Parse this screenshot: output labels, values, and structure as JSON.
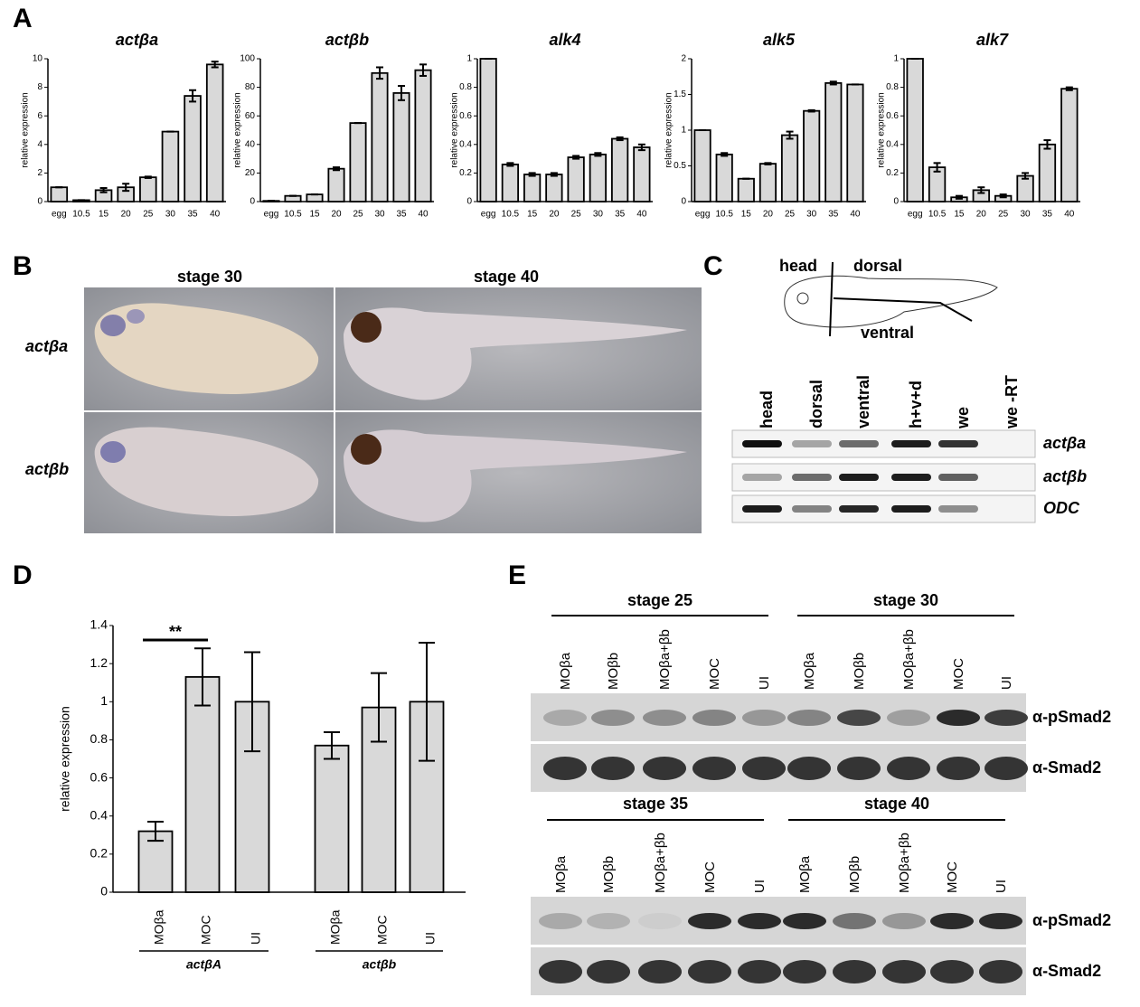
{
  "panel_labels": [
    "A",
    "B",
    "C",
    "D",
    "E"
  ],
  "chart_data": [
    {
      "type": "bar",
      "title": "actβa",
      "y_label": "relative expression",
      "categories": [
        "egg",
        "10.5",
        "15",
        "20",
        "25",
        "30",
        "35",
        "40"
      ],
      "values": [
        1.0,
        0.1,
        0.8,
        1.0,
        1.7,
        4.9,
        7.4,
        9.6
      ],
      "errors": [
        0,
        0,
        0.15,
        0.25,
        0.05,
        0,
        0.4,
        0.2
      ],
      "color": "#d9d9d9",
      "ylim": [
        0,
        10
      ],
      "yticks": [
        0,
        2,
        4,
        6,
        8,
        10
      ]
    },
    {
      "type": "bar",
      "title": "actβb",
      "y_label": "relative expression",
      "categories": [
        "egg",
        "10.5",
        "15",
        "20",
        "25",
        "30",
        "35",
        "40"
      ],
      "values": [
        0.5,
        4,
        5,
        23,
        55,
        90,
        76,
        92
      ],
      "errors": [
        0,
        0,
        0,
        1,
        0,
        4,
        5,
        4
      ],
      "color": "#d9d9d9",
      "ylim": [
        0,
        100
      ],
      "yticks": [
        0,
        20,
        40,
        60,
        80,
        100
      ]
    },
    {
      "type": "bar",
      "title": "alk4",
      "y_label": "relative expression",
      "categories": [
        "egg",
        "10.5",
        "15",
        "20",
        "25",
        "30",
        "35",
        "40"
      ],
      "values": [
        1,
        0.26,
        0.19,
        0.19,
        0.31,
        0.33,
        0.44,
        0.38
      ],
      "errors": [
        0,
        0.01,
        0.01,
        0.01,
        0.01,
        0.01,
        0.01,
        0.02
      ],
      "color": "#d9d9d9",
      "ylim": [
        0,
        1
      ],
      "yticks": [
        0,
        0.2,
        0.4,
        0.6,
        0.8,
        1
      ]
    },
    {
      "type": "bar",
      "title": "alk5",
      "y_label": "relative expression",
      "categories": [
        "egg",
        "10.5",
        "15",
        "20",
        "25",
        "30",
        "35",
        "40"
      ],
      "values": [
        1,
        0.66,
        0.32,
        0.53,
        0.93,
        1.27,
        1.66,
        1.64
      ],
      "errors": [
        0,
        0.02,
        0,
        0.01,
        0.05,
        0.01,
        0.02,
        0
      ],
      "color": "#d9d9d9",
      "ylim": [
        0,
        2
      ],
      "yticks": [
        0,
        0.5,
        1,
        1.5,
        2
      ]
    },
    {
      "type": "bar",
      "title": "alk7",
      "y_label": "relative expression",
      "categories": [
        "egg",
        "10.5",
        "15",
        "20",
        "25",
        "30",
        "35",
        "40"
      ],
      "values": [
        1,
        0.24,
        0.03,
        0.08,
        0.04,
        0.18,
        0.4,
        0.79
      ],
      "errors": [
        0,
        0.03,
        0.01,
        0.02,
        0.01,
        0.02,
        0.03,
        0.01
      ],
      "color": "#d9d9d9",
      "ylim": [
        0,
        1
      ],
      "yticks": [
        0,
        0.2,
        0.4,
        0.6,
        0.8,
        1
      ]
    },
    {
      "type": "bar",
      "y_label": "relative expression",
      "categories": [
        "MOβa",
        "MOC",
        "UI",
        "MOβa",
        "MOC",
        "UI"
      ],
      "group_labels": [
        "actβA",
        "actβb"
      ],
      "values": [
        0.32,
        1.13,
        1.0,
        0.77,
        0.97,
        1.0
      ],
      "errors": [
        0.05,
        0.15,
        0.26,
        0.07,
        0.18,
        0.31
      ],
      "annotation": "**",
      "color": "#d9d9d9",
      "ylim": [
        0,
        1.4
      ],
      "yticks": [
        0,
        0.2,
        0.4,
        0.6,
        0.8,
        1,
        1.2,
        1.4
      ]
    }
  ],
  "panel_b": {
    "columns": [
      "stage 30",
      "stage 40"
    ],
    "rows": [
      "actβa",
      "actβb"
    ]
  },
  "panel_c": {
    "diagram_labels": [
      "head",
      "dorsal",
      "ventral"
    ],
    "lanes": [
      "head",
      "dorsal",
      "ventral",
      "h+v+d",
      "we",
      "we -RT"
    ],
    "rows": [
      "actβa",
      "actβb",
      "ODC"
    ]
  },
  "panel_e": {
    "stages": [
      "stage 25",
      "stage 30",
      "stage 35",
      "stage 40"
    ],
    "lanes": [
      "MOβa",
      "MOβb",
      "MOβa+βb",
      "MOC",
      "UI"
    ],
    "antibodies": [
      "α-pSmad2",
      "α-Smad2"
    ]
  }
}
